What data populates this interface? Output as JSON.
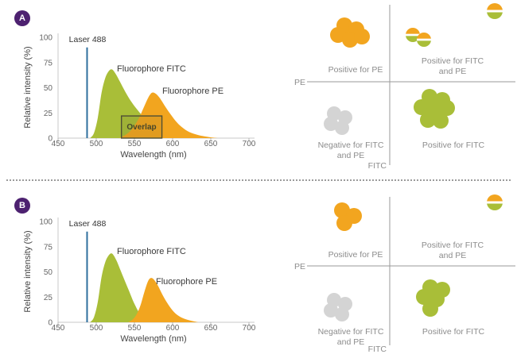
{
  "figure": {
    "badges": [
      "A",
      "B"
    ]
  },
  "colors": {
    "orange": "#f2a51f",
    "green": "#a9be38",
    "gray": "#d4d4d4",
    "purple": "#4d2170",
    "laser_blue": "#2f6f9e"
  },
  "chart_data": [
    {
      "type": "area",
      "xlabel": "Wavelength (nm)",
      "ylabel": "Relative intensity (%)",
      "xlim": [
        450,
        710
      ],
      "ylim": [
        0,
        100
      ],
      "x_ticks": [
        450,
        500,
        550,
        600,
        650,
        700
      ],
      "y_ticks": [
        0,
        25,
        50,
        75,
        100
      ],
      "laser": {
        "label": "Laser 488",
        "wavelength": 488,
        "intensity": 90
      },
      "series": [
        {
          "name": "Fluorophore FITC",
          "color": "#a9be38",
          "points": [
            [
              492,
              0
            ],
            [
              497,
              5
            ],
            [
              502,
              20
            ],
            [
              507,
              45
            ],
            [
              512,
              60
            ],
            [
              517,
              67
            ],
            [
              521,
              68
            ],
            [
              526,
              63
            ],
            [
              531,
              56
            ],
            [
              538,
              46
            ],
            [
              546,
              36
            ],
            [
              554,
              28
            ],
            [
              562,
              21
            ],
            [
              572,
              15
            ],
            [
              582,
              10
            ],
            [
              592,
              7
            ],
            [
              605,
              4
            ],
            [
              620,
              2
            ],
            [
              640,
              1
            ],
            [
              656,
              0
            ]
          ]
        },
        {
          "name": "Fluorophore PE",
          "color": "#f2a51f",
          "points": [
            [
              530,
              0
            ],
            [
              540,
              4
            ],
            [
              548,
              10
            ],
            [
              556,
              20
            ],
            [
              562,
              30
            ],
            [
              568,
              40
            ],
            [
              573,
              45
            ],
            [
              578,
              44
            ],
            [
              583,
              40
            ],
            [
              589,
              33
            ],
            [
              596,
              25
            ],
            [
              604,
              17
            ],
            [
              612,
              11
            ],
            [
              622,
              6
            ],
            [
              634,
              3
            ],
            [
              648,
              1
            ],
            [
              660,
              0
            ]
          ]
        }
      ],
      "overlap": {
        "label": "Overlap",
        "x_range": [
          533,
          586
        ],
        "y_range": [
          0,
          22
        ]
      }
    },
    {
      "type": "area",
      "xlabel": "Wavelength (nm)",
      "ylabel": "Relative intensity (%)",
      "xlim": [
        450,
        710
      ],
      "ylim": [
        0,
        100
      ],
      "x_ticks": [
        450,
        500,
        550,
        600,
        650,
        700
      ],
      "y_ticks": [
        0,
        25,
        50,
        75,
        100
      ],
      "laser": {
        "label": "Laser 488",
        "wavelength": 488,
        "intensity": 90
      },
      "series": [
        {
          "name": "Fluorophore FITC",
          "color": "#a9be38",
          "points": [
            [
              492,
              0
            ],
            [
              497,
              5
            ],
            [
              502,
              20
            ],
            [
              507,
              45
            ],
            [
              512,
              60
            ],
            [
              517,
              67
            ],
            [
              521,
              68
            ],
            [
              526,
              62
            ],
            [
              531,
              53
            ],
            [
              537,
              42
            ],
            [
              543,
              31
            ],
            [
              549,
              20
            ],
            [
              555,
              11
            ],
            [
              561,
              5
            ],
            [
              567,
              2
            ],
            [
              574,
              0
            ]
          ]
        },
        {
          "name": "Fluorophore PE",
          "color": "#f2a51f",
          "points": [
            [
              542,
              0
            ],
            [
              548,
              3
            ],
            [
              553,
              8
            ],
            [
              558,
              17
            ],
            [
              563,
              30
            ],
            [
              568,
              41
            ],
            [
              572,
              44
            ],
            [
              576,
              42
            ],
            [
              581,
              36
            ],
            [
              587,
              27
            ],
            [
              594,
              18
            ],
            [
              602,
              10
            ],
            [
              611,
              5
            ],
            [
              622,
              2
            ],
            [
              634,
              0
            ]
          ]
        }
      ],
      "overlap": null
    }
  ],
  "quadrants": [
    {
      "y_axis_label": "PE",
      "x_axis_label": "FITC",
      "labels": {
        "top_left": "Positive for PE",
        "top_right": [
          "Positive for FITC",
          "and PE"
        ],
        "bottom_left": [
          "Negative for FITC",
          "and PE"
        ],
        "bottom_right": "Positive for FITC"
      },
      "clusters": [
        {
          "name": "pe-positive-cells",
          "fill": "orange",
          "r": 10,
          "dots": [
            [
              73,
              32
            ],
            [
              88,
              37
            ],
            [
              65,
              44
            ],
            [
              80,
              50
            ],
            [
              95,
              46
            ]
          ]
        },
        {
          "name": "double-positive-cells",
          "fill": "dual",
          "r": 9,
          "dots": [
            [
              159,
              44
            ],
            [
              173,
              50
            ]
          ]
        },
        {
          "name": "double-positive-cell-corner",
          "fill": "dual",
          "r": 10,
          "dots": [
            [
              262,
              14
            ]
          ]
        },
        {
          "name": "negative-cells",
          "fill": "gray",
          "r": 9,
          "dots": [
            [
              60,
              143
            ],
            [
              74,
              148
            ],
            [
              56,
              156
            ],
            [
              70,
              161
            ]
          ]
        },
        {
          "name": "fitc-positive-cells",
          "fill": "green",
          "r": 10,
          "dots": [
            [
              180,
              122
            ],
            [
              196,
              126
            ],
            [
              170,
              135
            ],
            [
              186,
              138
            ],
            [
              202,
              136
            ],
            [
              178,
              151
            ],
            [
              194,
              152
            ]
          ]
        }
      ]
    },
    {
      "y_axis_label": "PE",
      "x_axis_label": "FITC",
      "labels": {
        "top_left": "Positive for PE",
        "top_right": [
          "Positive for FITC",
          "and PE"
        ],
        "bottom_left": [
          "Negative for FITC",
          "and PE"
        ],
        "bottom_right": "Positive for FITC"
      },
      "clusters": [
        {
          "name": "pe-positive-cells",
          "fill": "orange",
          "r": 10,
          "dots": [
            [
              70,
              33
            ],
            [
              85,
              40
            ],
            [
              73,
              49
            ]
          ]
        },
        {
          "name": "double-positive-cell-corner",
          "fill": "dual",
          "r": 10,
          "dots": [
            [
              262,
              23
            ]
          ]
        },
        {
          "name": "negative-cells",
          "fill": "gray",
          "r": 9,
          "dots": [
            [
              60,
              146
            ],
            [
              74,
              151
            ],
            [
              56,
              159
            ],
            [
              70,
              164
            ]
          ]
        },
        {
          "name": "fitc-positive-cells",
          "fill": "green",
          "r": 10,
          "dots": [
            [
              181,
              130
            ],
            [
              196,
              133
            ],
            [
              173,
              142
            ],
            [
              189,
              145
            ],
            [
              181,
              157
            ]
          ]
        }
      ]
    }
  ]
}
